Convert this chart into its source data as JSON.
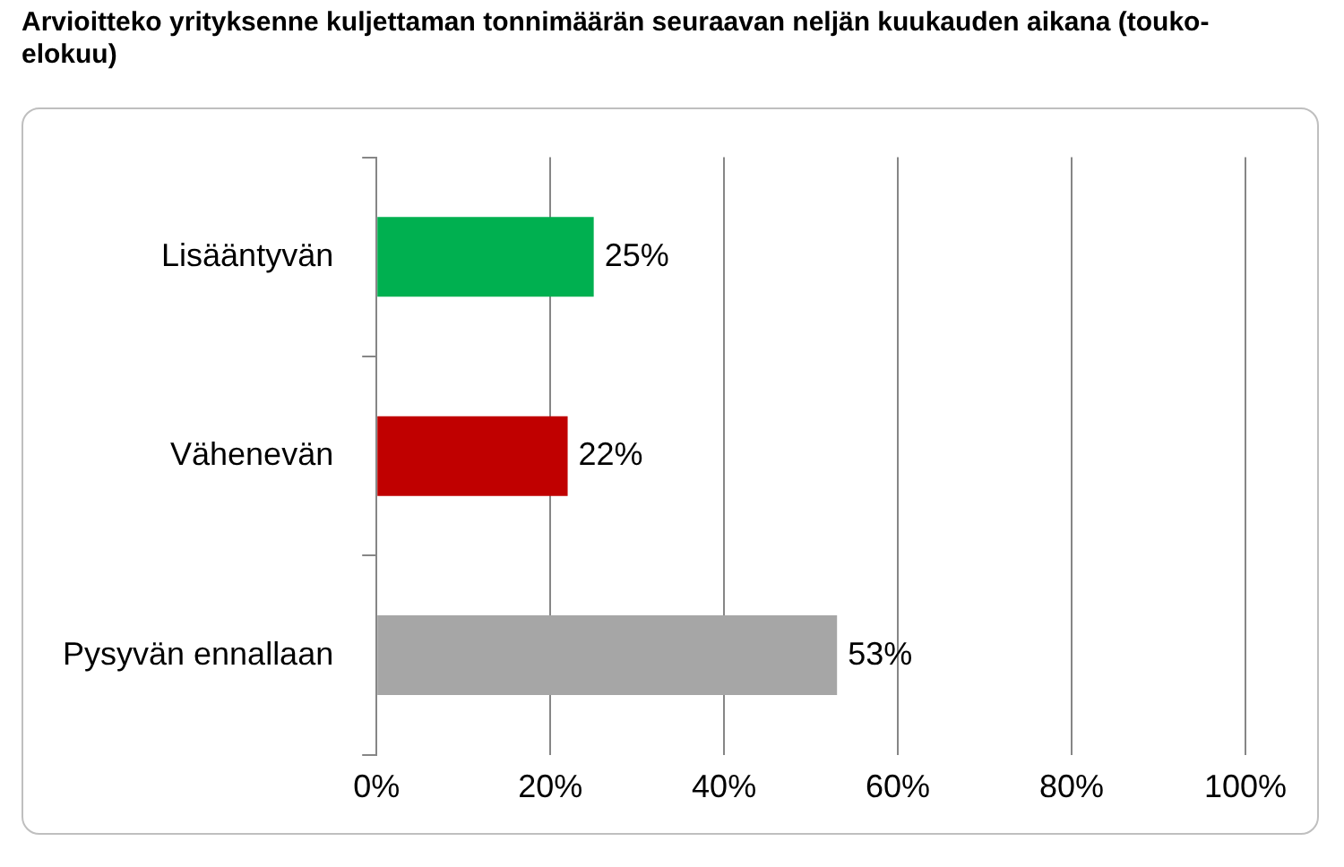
{
  "chart_data": {
    "type": "bar",
    "orientation": "horizontal",
    "title": "Arvioitteko yrityksenne kuljettaman tonnimäärän seuraavan neljän kuukauden aikana (touko-elokuu)",
    "categories": [
      "Lisääntyvän",
      "Vähenevän",
      "Pysyvän ennallaan"
    ],
    "values": [
      25,
      22,
      53
    ],
    "colors": [
      "#00b050",
      "#c00000",
      "#a6a6a6"
    ],
    "value_labels": [
      "25%",
      "22%",
      "53%"
    ],
    "xlim": [
      0,
      100
    ],
    "xticks": [
      {
        "value": 0,
        "label": "0%"
      },
      {
        "value": 20,
        "label": "20%"
      },
      {
        "value": 40,
        "label": "40%"
      },
      {
        "value": 60,
        "label": "60%"
      },
      {
        "value": 80,
        "label": "80%"
      },
      {
        "value": 100,
        "label": "100%"
      }
    ],
    "grid": "x",
    "legend": false
  }
}
